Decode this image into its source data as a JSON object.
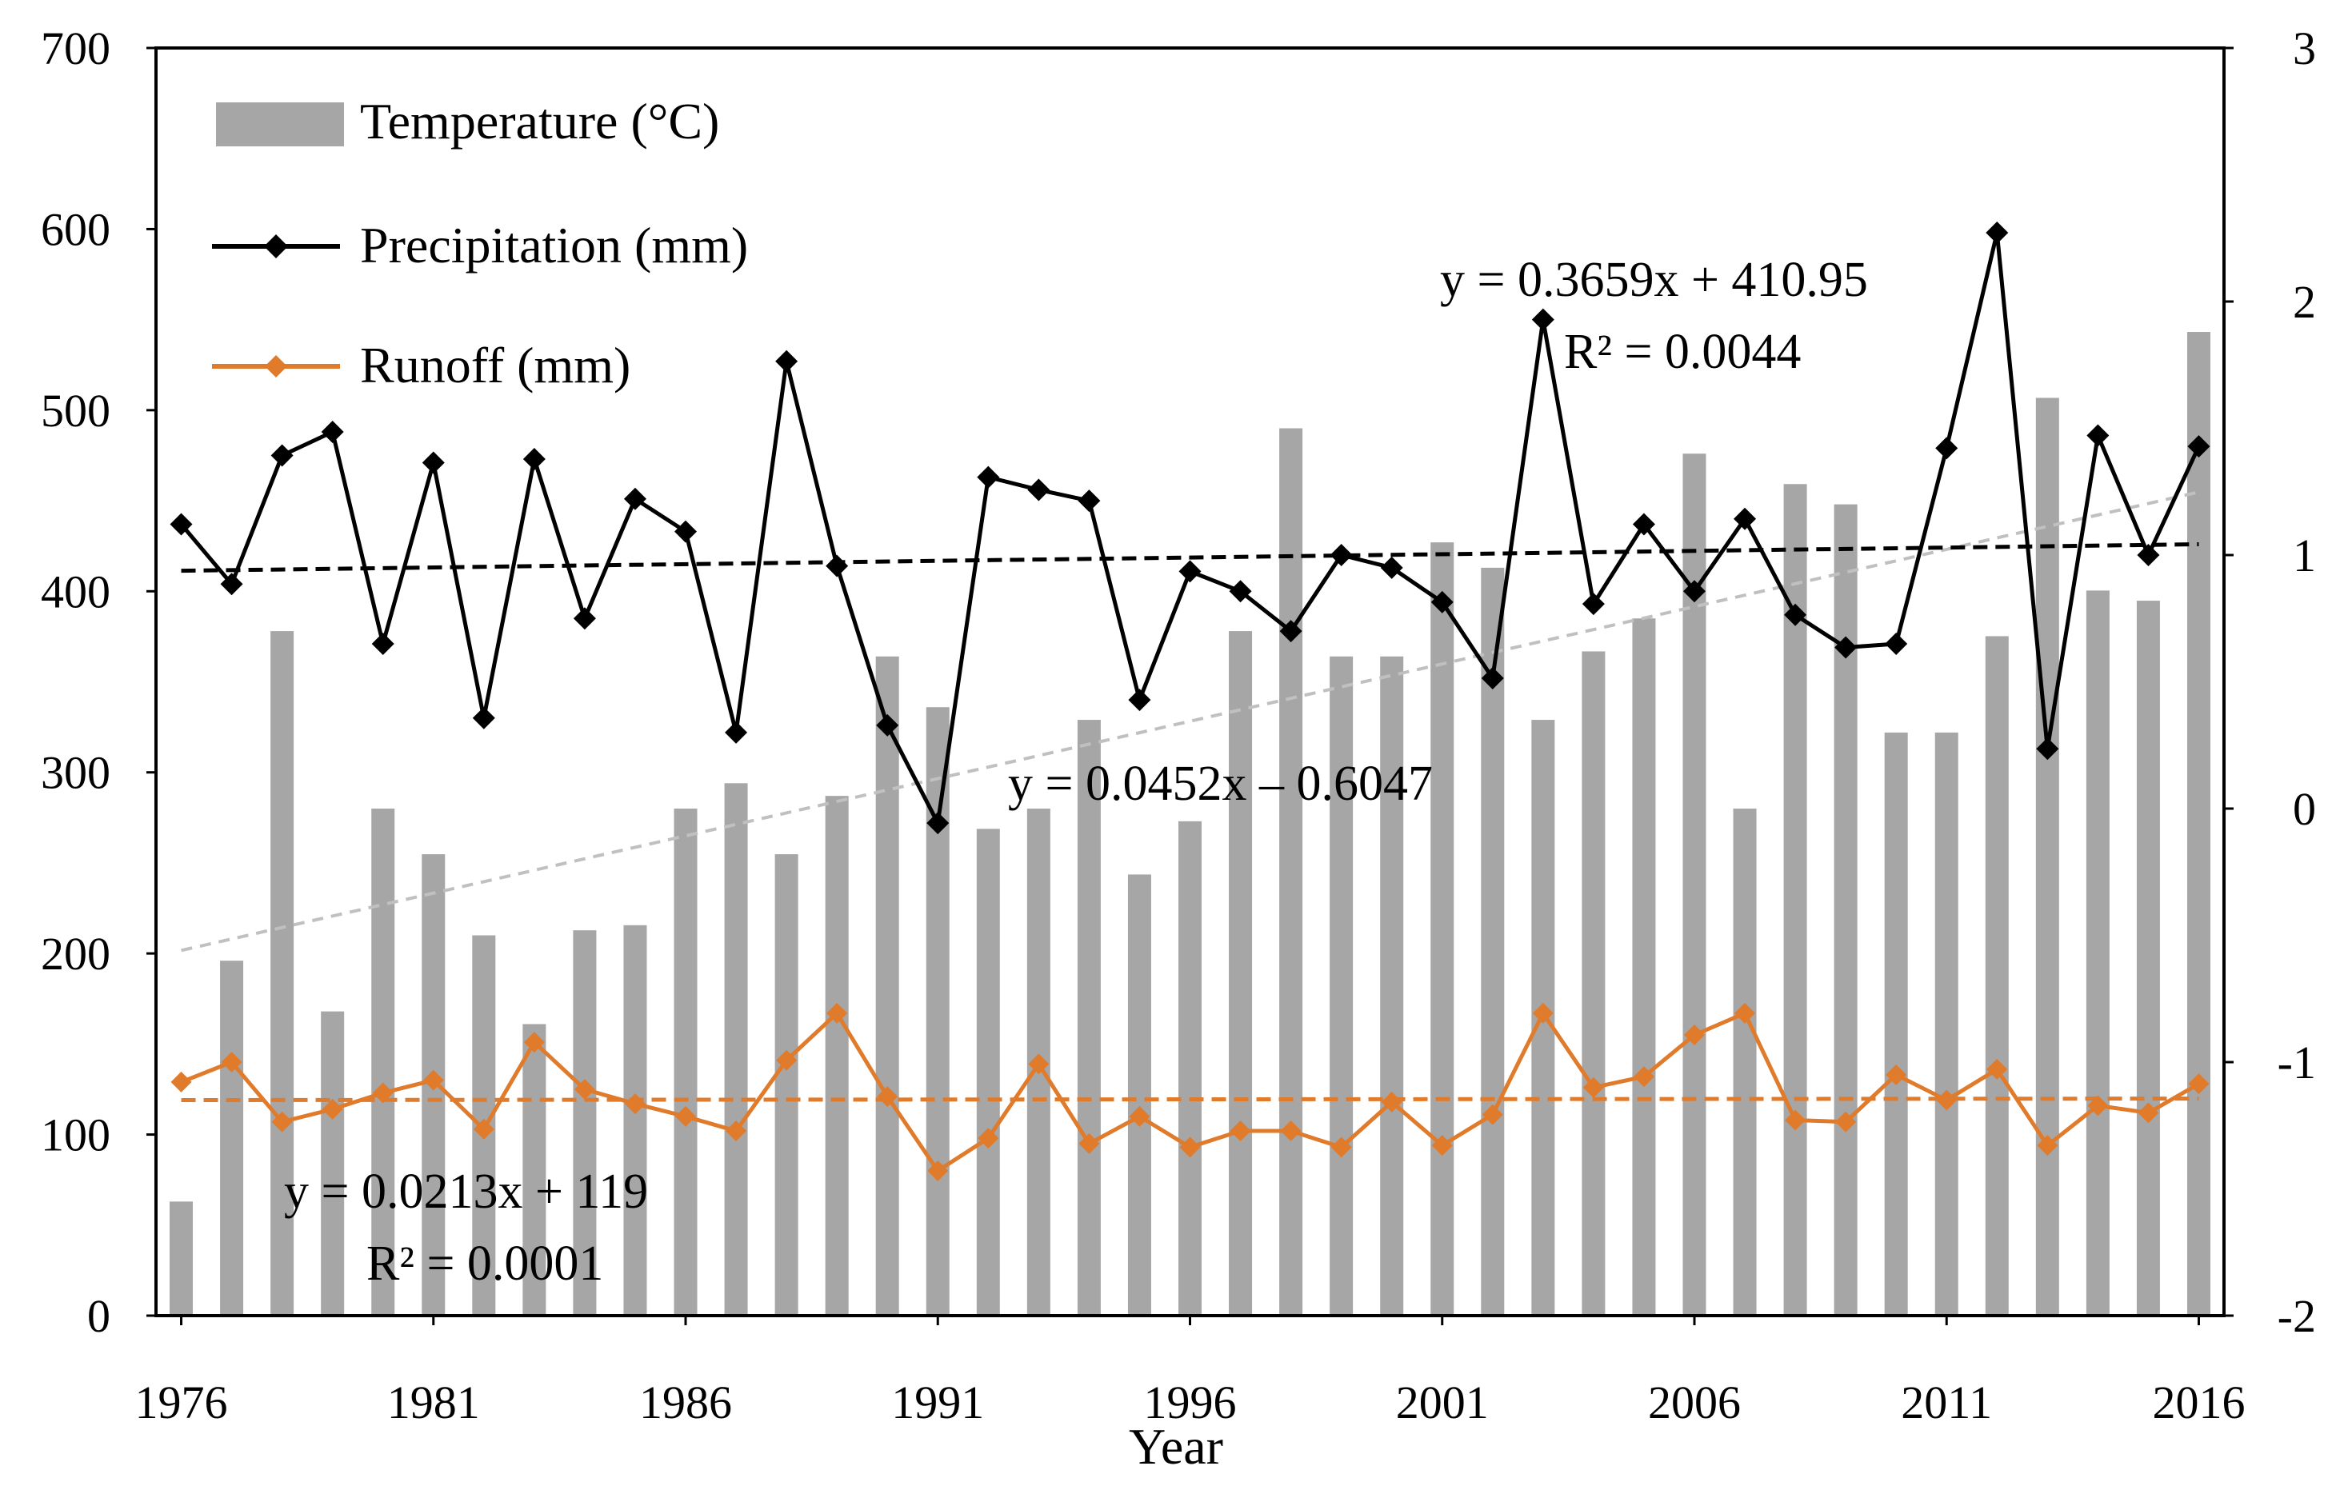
{
  "chart_data": {
    "type": "bar+line",
    "x_label": "Year",
    "x_tick_labels": [
      "1976",
      "1981",
      "1986",
      "1991",
      "1996",
      "2001",
      "2006",
      "2011",
      "2016"
    ],
    "years": [
      1976,
      1977,
      1978,
      1979,
      1980,
      1981,
      1982,
      1983,
      1984,
      1985,
      1986,
      1987,
      1988,
      1989,
      1990,
      1991,
      1992,
      1993,
      1994,
      1995,
      1996,
      1997,
      1998,
      1999,
      2000,
      2001,
      2002,
      2003,
      2004,
      2005,
      2006,
      2007,
      2008,
      2009,
      2010,
      2011,
      2012,
      2013,
      2014,
      2015,
      2016
    ],
    "left_axis": {
      "min": 0,
      "max": 700,
      "ticks": [
        "0",
        "100",
        "200",
        "300",
        "400",
        "500",
        "600",
        "700"
      ]
    },
    "right_axis": {
      "min": -2,
      "max": 3,
      "ticks": [
        "-2",
        "-1",
        "0",
        "1",
        "2",
        "3"
      ]
    },
    "grid": false,
    "legend": {
      "position": "top-left",
      "entries": [
        {
          "key": "temperature",
          "label": "Temperature (°C)"
        },
        {
          "key": "precipitation",
          "label": "Precipitation (mm)"
        },
        {
          "key": "runoff",
          "label": "Runoff (mm)"
        }
      ]
    },
    "series": [
      {
        "key": "temperature",
        "name": "Temperature (°C)",
        "kind": "bar",
        "axis": "right",
        "color": "#a6a6a6",
        "values": [
          -1.55,
          -0.6,
          0.7,
          -0.8,
          0,
          -0.18,
          -0.5,
          -0.85,
          -0.48,
          -0.46,
          0,
          0.1,
          -0.18,
          0.05,
          0.6,
          0.4,
          -0.08,
          0,
          0.35,
          -0.26,
          -0.05,
          0.7,
          1.5,
          0.6,
          0.6,
          1.05,
          0.95,
          0.35,
          0.62,
          0.75,
          1.4,
          0,
          1.28,
          1.2,
          0.3,
          0.3,
          0.68,
          1.62,
          0.86,
          0.82,
          1.88
        ]
      },
      {
        "key": "precipitation",
        "name": "Precipitation (mm)",
        "kind": "line",
        "axis": "left",
        "color": "#000000",
        "values": [
          437,
          404,
          475,
          488,
          371,
          471,
          330,
          473,
          385,
          451,
          433,
          322,
          527,
          414,
          326,
          272,
          463,
          456,
          450,
          340,
          411,
          400,
          378,
          420,
          413,
          394,
          352,
          550,
          393,
          437,
          400,
          440,
          387,
          369,
          371,
          479,
          598,
          313,
          486,
          420,
          480
        ]
      },
      {
        "key": "runoff",
        "name": "Runoff (mm)",
        "kind": "line",
        "axis": "left",
        "color": "#e07b2c",
        "values": [
          129,
          140,
          107,
          114,
          123,
          130,
          103,
          151,
          125,
          117,
          110,
          102,
          141,
          167,
          121,
          80,
          98,
          139,
          95,
          110,
          93,
          102,
          102,
          93,
          118,
          94,
          111,
          167,
          126,
          132,
          155,
          167,
          108,
          107,
          133,
          119,
          136,
          94,
          116,
          112,
          128
        ]
      }
    ],
    "trendlines": [
      {
        "series": "temperature",
        "axis": "right",
        "color": "#c0c0c0",
        "slope": 0.0452,
        "intercept": -0.6047,
        "equation": "y = 0.0452x – 0.6047",
        "r2": ""
      },
      {
        "series": "precipitation",
        "axis": "left",
        "color": "#000000",
        "slope": 0.3659,
        "intercept": 410.95,
        "equation": "y = 0.3659x + 410.95",
        "r2": "R² = 0.0044"
      },
      {
        "series": "runoff",
        "axis": "left",
        "color": "#e07b2c",
        "slope": 0.0213,
        "intercept": 119,
        "equation": "y = 0.0213x + 119",
        "r2": "R² = 0.0001"
      }
    ]
  }
}
